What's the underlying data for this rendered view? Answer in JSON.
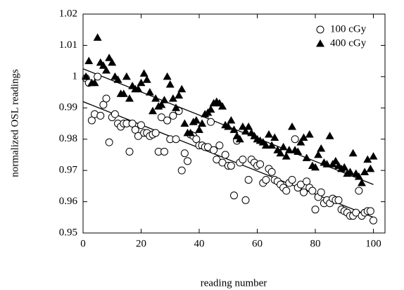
{
  "chart_data": {
    "type": "scatter",
    "xlabel": "reading number",
    "ylabel": "normalized OSL readings",
    "xlim": [
      0,
      104
    ],
    "ylim": [
      0.95,
      1.02
    ],
    "xticks": [
      0,
      20,
      40,
      60,
      80,
      100
    ],
    "yticks": [
      0.95,
      0.96,
      0.97,
      0.98,
      0.99,
      1,
      1.01,
      1.02
    ],
    "legend": "upper right",
    "x": [
      1,
      2,
      3,
      4,
      5,
      6,
      7,
      8,
      9,
      10,
      11,
      12,
      13,
      14,
      15,
      16,
      17,
      18,
      19,
      20,
      21,
      22,
      23,
      24,
      25,
      26,
      27,
      28,
      29,
      30,
      31,
      32,
      33,
      34,
      35,
      36,
      37,
      38,
      39,
      40,
      41,
      42,
      43,
      44,
      45,
      46,
      47,
      48,
      49,
      50,
      51,
      52,
      53,
      54,
      55,
      56,
      57,
      58,
      59,
      60,
      61,
      62,
      63,
      64,
      65,
      66,
      67,
      68,
      69,
      70,
      71,
      72,
      73,
      74,
      75,
      76,
      77,
      78,
      79,
      80,
      81,
      82,
      83,
      84,
      85,
      86,
      87,
      88,
      89,
      90,
      91,
      92,
      93,
      94,
      95,
      96,
      97,
      98,
      99,
      100
    ],
    "series": [
      {
        "name": "100 cGy",
        "marker": "circle",
        "color": "#000000",
        "values": [
          0.9995,
          0.998,
          0.986,
          0.988,
          1.0,
          0.9875,
          0.991,
          0.993,
          0.979,
          0.987,
          0.988,
          0.985,
          0.984,
          0.985,
          0.985,
          0.976,
          0.985,
          0.983,
          0.981,
          0.9845,
          0.982,
          0.982,
          0.981,
          0.9815,
          0.982,
          0.976,
          0.987,
          0.976,
          0.986,
          0.98,
          0.9875,
          0.98,
          0.989,
          0.97,
          0.9755,
          0.973,
          0.9815,
          0.981,
          0.98,
          0.978,
          0.978,
          0.9775,
          0.9775,
          0.9855,
          0.9765,
          0.9735,
          0.978,
          0.9725,
          0.975,
          0.9715,
          0.9715,
          0.962,
          0.9795,
          0.9725,
          0.9735,
          0.9605,
          0.967,
          0.9735,
          0.9725,
          0.9715,
          0.972,
          0.966,
          0.967,
          0.9705,
          0.9695,
          0.967,
          0.9665,
          0.9655,
          0.9645,
          0.9635,
          0.966,
          0.967,
          0.98,
          0.9645,
          0.9655,
          0.963,
          0.9665,
          0.9645,
          0.9635,
          0.9575,
          0.9615,
          0.963,
          0.9595,
          0.9605,
          0.9595,
          0.961,
          0.9605,
          0.9605,
          0.9575,
          0.957,
          0.9565,
          0.9555,
          0.9555,
          0.9565,
          0.9635,
          0.9555,
          0.9565,
          0.957,
          0.957,
          0.954
        ]
      },
      {
        "name": "400 cGy",
        "marker": "triangle",
        "color": "#000000",
        "values": [
          1.0,
          1.005,
          0.998,
          0.998,
          1.0125,
          1.0045,
          1.0035,
          1.002,
          1.006,
          1.0045,
          1.0,
          0.999,
          0.9945,
          0.9945,
          1.0,
          0.993,
          0.997,
          0.996,
          0.996,
          0.998,
          1.001,
          0.999,
          0.995,
          0.989,
          0.993,
          0.9905,
          0.991,
          0.9925,
          1.0,
          0.9975,
          0.993,
          0.99,
          0.994,
          0.996,
          0.985,
          0.982,
          0.982,
          0.9855,
          0.986,
          0.983,
          0.985,
          0.988,
          0.9885,
          0.9895,
          0.9915,
          0.992,
          0.9915,
          0.9905,
          0.9845,
          0.984,
          0.986,
          0.983,
          0.981,
          0.98,
          0.984,
          0.9825,
          0.984,
          0.982,
          0.981,
          0.98,
          0.9795,
          0.979,
          0.978,
          0.9815,
          0.978,
          0.9805,
          0.9765,
          0.9755,
          0.9775,
          0.9745,
          0.9765,
          0.984,
          0.9765,
          0.976,
          0.979,
          0.9805,
          0.974,
          0.9815,
          0.9715,
          0.971,
          0.975,
          0.977,
          0.9725,
          0.972,
          0.981,
          0.972,
          0.973,
          0.9715,
          0.9705,
          0.971,
          0.969,
          0.9695,
          0.9755,
          0.969,
          0.968,
          0.966,
          0.9695,
          0.9735,
          0.9705,
          0.9745
        ]
      }
    ],
    "trend_lines": [
      {
        "x": [
          0,
          100
        ],
        "values": [
          0.992,
          0.955
        ],
        "color": "#000000"
      },
      {
        "x": [
          0,
          100
        ],
        "values": [
          1.0025,
          0.9655
        ],
        "color": "#000000"
      }
    ]
  }
}
